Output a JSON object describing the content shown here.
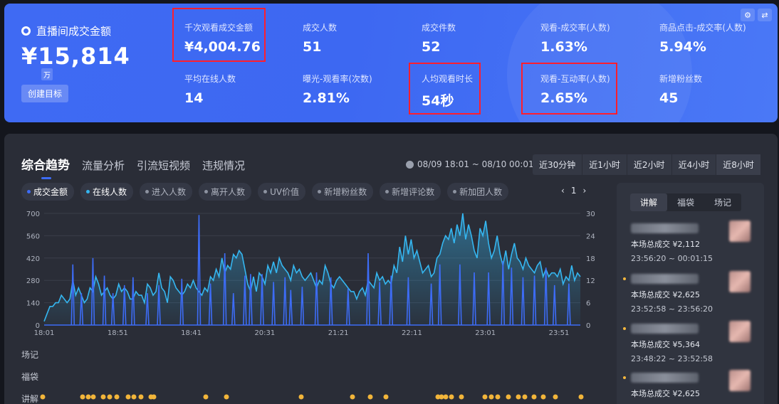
{
  "header": {
    "gmv_label": "直播间成交金额",
    "gmv_value": "¥15,814",
    "gmv_unit": "万",
    "create_target": "创建目标",
    "stats": [
      {
        "label": "千次观看成交金额",
        "value": "¥4,004.76",
        "highlighted": true
      },
      {
        "label": "成交人数",
        "value": "51",
        "highlighted": false
      },
      {
        "label": "成交件数",
        "value": "52",
        "highlighted": false
      },
      {
        "label": "观看-成交率(人数)",
        "value": "1.63%",
        "highlighted": false
      },
      {
        "label": "商品点击-成交率(人数)",
        "value": "5.94%",
        "highlighted": false
      },
      {
        "label": "平均在线人数",
        "value": "14",
        "highlighted": false
      },
      {
        "label": "曝光-观看率(次数)",
        "value": "2.81%",
        "highlighted": false
      },
      {
        "label": "人均观看时长",
        "value": "54秒",
        "highlighted": true
      },
      {
        "label": "观看-互动率(人数)",
        "value": "2.65%",
        "highlighted": true
      },
      {
        "label": "新增粉丝数",
        "value": "45",
        "highlighted": false
      }
    ],
    "highlight_color": "#ff1e2d",
    "icons": [
      "gear-icon",
      "swap-icon"
    ]
  },
  "trend": {
    "tabs": [
      "综合趋势",
      "流量分析",
      "引流短视频",
      "违规情况"
    ],
    "active_tab": 0,
    "date_range": "08/09 18:01 ~ 08/10 00:01",
    "ranges": [
      "近30分钟",
      "近1小时",
      "近2小时",
      "近4小时",
      "近8小时"
    ],
    "active_range": 4,
    "legend": [
      {
        "label": "成交金额",
        "on": true,
        "color": "#3d6cf6"
      },
      {
        "label": "在线人数",
        "on": true,
        "color": "#35b6f0"
      },
      {
        "label": "进入人数",
        "on": false
      },
      {
        "label": "离开人数",
        "on": false
      },
      {
        "label": "UV价值",
        "on": false
      },
      {
        "label": "新增粉丝数",
        "on": false
      },
      {
        "label": "新增评论数",
        "on": false
      },
      {
        "label": "新加团人数",
        "on": false
      }
    ],
    "pager": {
      "prev": "‹",
      "page": "1",
      "next": "›"
    },
    "swimlanes": [
      "场记",
      "福袋",
      "讲解"
    ]
  },
  "chart_data": {
    "type": "line",
    "x_ticks": [
      "18:01",
      "18:51",
      "18:41",
      "20:31",
      "21:21",
      "22:11",
      "23:01",
      "23:51"
    ],
    "y_left_ticks": [
      0,
      140,
      280,
      420,
      560,
      700
    ],
    "y_right_ticks": [
      0,
      6,
      12,
      18,
      24,
      30
    ],
    "ylim_left": [
      0,
      700
    ],
    "ylim_right": [
      0,
      30
    ],
    "series": [
      {
        "name": "在线人数",
        "axis": "right",
        "color": "#35b6f0",
        "values": [
          1,
          3,
          5,
          5,
          6,
          6,
          8,
          7,
          6,
          7,
          12,
          8,
          10,
          8,
          6,
          7,
          10,
          9,
          13,
          11,
          8,
          9,
          10,
          8,
          7,
          8,
          11,
          9,
          10,
          9,
          7,
          7,
          9,
          8,
          8,
          6,
          11,
          10,
          8,
          9,
          14,
          10,
          9,
          6,
          13,
          12,
          10,
          9,
          8,
          9,
          11,
          10,
          12,
          10,
          9,
          8,
          10,
          9,
          13,
          12,
          15,
          13,
          18,
          14,
          16,
          15,
          19,
          18,
          20,
          19,
          15,
          11,
          9,
          13,
          9,
          14,
          13,
          11,
          16,
          14,
          17,
          14,
          18,
          16,
          15,
          14,
          12,
          16,
          14,
          15,
          13,
          12,
          13,
          14,
          12,
          10,
          12,
          11,
          16,
          14,
          11,
          10,
          12,
          13,
          12,
          11,
          10,
          9,
          9,
          7,
          9,
          10,
          8,
          12,
          11,
          10,
          14,
          12,
          13,
          11,
          12,
          11,
          16,
          14,
          21,
          17,
          24,
          19,
          23,
          18,
          20,
          17,
          14,
          15,
          16,
          13,
          14,
          18,
          19,
          22,
          24,
          23,
          26,
          22,
          27,
          24,
          30,
          23,
          27,
          24,
          20,
          18,
          26,
          24,
          28,
          22,
          18,
          20,
          24,
          19,
          16,
          20,
          15,
          19,
          22,
          18,
          17,
          15,
          18,
          16,
          15,
          14,
          16,
          17,
          13,
          15,
          13,
          14,
          14,
          13,
          15,
          11,
          13,
          12,
          16,
          12,
          14,
          13
        ]
      },
      {
        "name": "成交金额",
        "axis": "left",
        "color": "#3d6cf6",
        "spikes": [
          [
            10,
            380
          ],
          [
            13,
            200
          ],
          [
            17,
            420
          ],
          [
            21,
            310
          ],
          [
            24,
            200
          ],
          [
            28,
            250
          ],
          [
            31,
            300
          ],
          [
            36,
            200
          ],
          [
            40,
            250
          ],
          [
            48,
            290
          ],
          [
            54,
            690
          ],
          [
            58,
            260
          ],
          [
            63,
            450
          ],
          [
            66,
            200
          ],
          [
            70,
            310
          ],
          [
            72,
            320
          ],
          [
            76,
            320
          ],
          [
            80,
            270
          ],
          [
            84,
            300
          ],
          [
            86,
            220
          ],
          [
            90,
            240
          ],
          [
            95,
            330
          ],
          [
            100,
            300
          ],
          [
            106,
            230
          ],
          [
            113,
            450
          ],
          [
            117,
            270
          ],
          [
            121,
            310
          ],
          [
            127,
            300
          ],
          [
            135,
            260
          ],
          [
            138,
            380
          ],
          [
            145,
            380
          ],
          [
            150,
            330
          ],
          [
            155,
            330
          ],
          [
            160,
            400
          ],
          [
            163,
            360
          ],
          [
            167,
            300
          ],
          [
            171,
            310
          ],
          [
            175,
            360
          ],
          [
            178,
            250
          ],
          [
            183,
            260
          ]
        ]
      }
    ]
  },
  "side": {
    "tabs": [
      "讲解",
      "福袋",
      "场记"
    ],
    "active_tab": 0,
    "items": [
      {
        "deal": "本场总成交 ¥2,112",
        "time": "23:56:20 ~ 00:01:15"
      },
      {
        "deal": "本场总成交 ¥2,625",
        "time": "23:52:58 ~ 23:56:20"
      },
      {
        "deal": "本场总成交 ¥5,364",
        "time": "23:48:22 ~ 23:52:58"
      },
      {
        "deal": "本场总成交 ¥2,625",
        "time": ""
      }
    ]
  }
}
